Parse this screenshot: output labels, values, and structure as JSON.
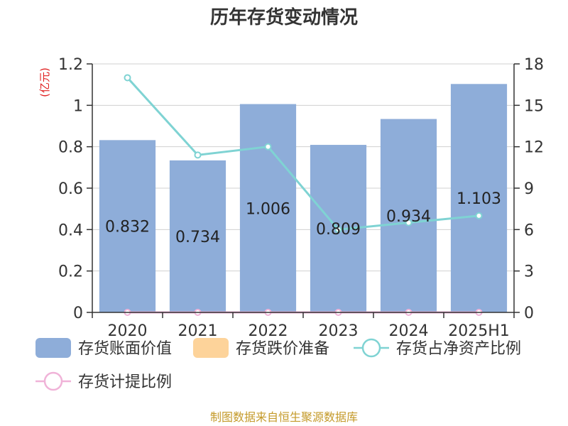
{
  "chart_data": {
    "type": "bar",
    "title": "历年存货变动情况",
    "categories": [
      "2020",
      "2021",
      "2022",
      "2023",
      "2024",
      "2025H1"
    ],
    "y_left_unit": "(亿元)",
    "y_left_ticks": [
      "0",
      "0.2",
      "0.4",
      "0.6",
      "0.8",
      "1",
      "1.2"
    ],
    "y_right_ticks": [
      "0",
      "3",
      "6",
      "9",
      "12",
      "15",
      "18"
    ],
    "ylim_left": [
      0,
      1.2
    ],
    "ylim_right": [
      0,
      18
    ],
    "series": [
      {
        "name": "存货账面价值",
        "type": "bar",
        "axis": "left",
        "color": "#8eadd9",
        "values": [
          0.832,
          0.734,
          1.006,
          0.809,
          0.934,
          1.103
        ],
        "labels": [
          "0.832",
          "0.734",
          "1.006",
          "0.809",
          "0.934",
          "1.103"
        ]
      },
      {
        "name": "存货跌价准备",
        "type": "bar",
        "axis": "left",
        "color": "#fdd39a",
        "values": [
          0,
          0,
          0,
          0,
          0,
          0
        ]
      },
      {
        "name": "存货占净资产比例",
        "type": "line",
        "axis": "right",
        "color": "#7fd3d3",
        "values": [
          17.0,
          11.4,
          12.0,
          6.0,
          6.5,
          7.0
        ]
      },
      {
        "name": "存货计提比例",
        "type": "line",
        "axis": "right",
        "color": "#f0b3d8",
        "values": [
          0,
          0,
          0,
          0,
          0,
          0
        ]
      }
    ],
    "grid": true,
    "legend_position": "bottom"
  },
  "source_text": "制图数据来自恒生聚源数据库"
}
